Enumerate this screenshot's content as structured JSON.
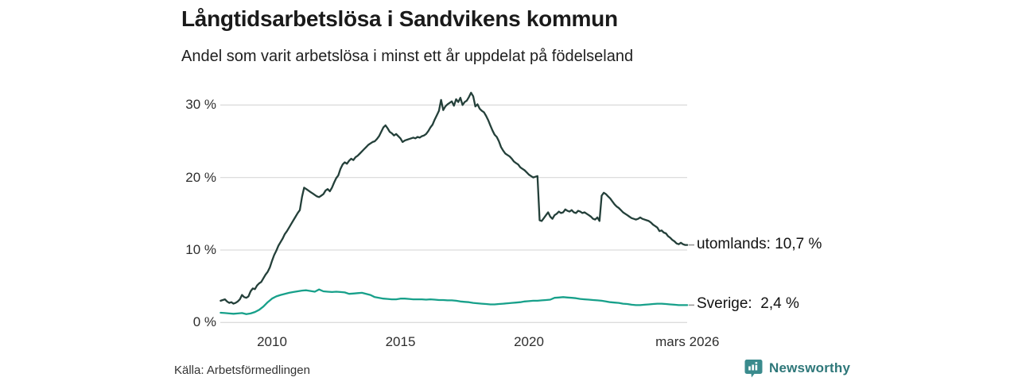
{
  "header": {
    "title": "Långtidsarbetslösa i Sandvikens kommun",
    "subtitle": "Andel som varit arbetslösa i minst ett år uppdelat på födelseland"
  },
  "source": {
    "label": "Källa: Arbetsförmedlingen"
  },
  "branding": {
    "name": "Newsworthy",
    "logo_icon": "bar-chart-badge-icon",
    "badge_color": "#3a8b8d",
    "text_color": "#2e7779"
  },
  "chart_data": {
    "type": "line",
    "title": "Långtidsarbetslösa i Sandvikens kommun",
    "subtitle": "Andel som varit arbetslösa i minst ett år uppdelat på födelseland",
    "unit": "%",
    "grid": true,
    "grid_color": "#dcdcdc",
    "y_axis": {
      "range": [
        0,
        32
      ],
      "ticks": [
        {
          "value": 30,
          "label": "30 %"
        },
        {
          "value": 20,
          "label": "20 %"
        },
        {
          "value": 10,
          "label": "10 %"
        },
        {
          "value": 0,
          "label": "0 %"
        }
      ]
    },
    "x_axis": {
      "range": [
        2008,
        2026.25
      ],
      "ticks": [
        {
          "year": 2010,
          "label": "2010"
        },
        {
          "year": 2015,
          "label": "2015"
        },
        {
          "year": 2020,
          "label": "2020"
        },
        {
          "year": 2026.17,
          "label": "mars 2026"
        }
      ]
    },
    "legend_position": "end-of-line",
    "dash_color": "#999999",
    "series": [
      {
        "name": "utomlands",
        "end_label": "utomlands: 10,7 %",
        "last_value_text": "10,7 %",
        "color": "#24403a",
        "x_start": 2008.0,
        "x_step_years": 0.083333,
        "values": [
          3.0,
          3.1,
          3.2,
          2.9,
          2.7,
          2.8,
          2.6,
          2.7,
          2.9,
          3.2,
          3.8,
          3.5,
          3.4,
          3.6,
          4.3,
          4.7,
          4.6,
          5.1,
          5.4,
          5.6,
          6.1,
          6.6,
          7.0,
          7.6,
          8.5,
          9.3,
          9.9,
          10.6,
          11.1,
          11.6,
          12.2,
          12.6,
          13.1,
          13.6,
          14.1,
          14.6,
          15.1,
          15.5,
          17.3,
          18.6,
          18.4,
          18.2,
          18.0,
          17.8,
          17.6,
          17.4,
          17.3,
          17.5,
          17.7,
          18.2,
          18.4,
          18.1,
          18.6,
          19.3,
          19.9,
          20.3,
          21.2,
          21.8,
          22.1,
          21.9,
          22.3,
          22.6,
          22.4,
          22.8,
          23.0,
          23.3,
          23.6,
          23.9,
          24.2,
          24.5,
          24.7,
          24.9,
          25.0,
          25.3,
          25.7,
          26.3,
          26.9,
          27.2,
          26.8,
          26.3,
          26.1,
          25.8,
          26.0,
          25.7,
          25.4,
          24.9,
          25.1,
          25.2,
          25.3,
          25.4,
          25.5,
          25.4,
          25.6,
          25.5,
          25.7,
          25.8,
          26.0,
          26.4,
          26.9,
          27.3,
          28.0,
          28.6,
          29.2,
          30.7,
          29.3,
          29.8,
          30.1,
          30.3,
          30.5,
          29.9,
          30.8,
          30.4,
          31.0,
          30.0,
          30.4,
          30.6,
          31.1,
          31.7,
          31.2,
          29.8,
          30.1,
          29.5,
          29.2,
          29.0,
          28.5,
          27.9,
          27.2,
          26.5,
          25.9,
          25.6,
          25.0,
          24.2,
          23.7,
          23.3,
          23.1,
          22.9,
          22.6,
          22.2,
          22.0,
          21.8,
          21.4,
          21.2,
          21.0,
          20.7,
          20.4,
          20.2,
          20.0,
          20.1,
          20.2,
          14.1,
          14.0,
          14.4,
          14.8,
          15.2,
          14.6,
          14.3,
          14.8,
          15.0,
          15.3,
          15.1,
          15.2,
          15.6,
          15.4,
          15.3,
          15.5,
          15.2,
          15.1,
          15.4,
          15.3,
          15.1,
          15.2,
          15.0,
          14.8,
          14.6,
          14.3,
          14.2,
          14.5,
          14.0,
          17.5,
          17.9,
          17.7,
          17.4,
          17.1,
          16.7,
          16.3,
          16.0,
          15.8,
          15.5,
          15.2,
          15.0,
          14.8,
          14.6,
          14.4,
          14.3,
          14.2,
          14.3,
          14.5,
          14.3,
          14.2,
          14.1,
          14.0,
          13.8,
          13.5,
          13.3,
          13.1,
          12.6,
          12.7,
          12.4,
          12.3,
          11.9,
          11.7,
          11.4,
          11.2,
          10.9,
          10.8,
          11.0,
          10.8,
          10.7,
          10.7
        ]
      },
      {
        "name": "Sverige",
        "end_label": "Sverige:  2,4 %",
        "last_value_text": "2,4 %",
        "color": "#17a08a",
        "x_start": 2008.0,
        "x_step_years": 0.166667,
        "values": [
          1.35,
          1.3,
          1.25,
          1.2,
          1.25,
          1.3,
          1.15,
          1.25,
          1.45,
          1.75,
          2.2,
          2.8,
          3.3,
          3.6,
          3.8,
          3.95,
          4.1,
          4.2,
          4.3,
          4.4,
          4.45,
          4.35,
          4.25,
          4.55,
          4.3,
          4.25,
          4.2,
          4.25,
          4.2,
          4.15,
          3.95,
          4.0,
          4.05,
          4.1,
          3.95,
          3.8,
          3.5,
          3.4,
          3.3,
          3.25,
          3.2,
          3.2,
          3.3,
          3.3,
          3.25,
          3.2,
          3.2,
          3.2,
          3.15,
          3.2,
          3.15,
          3.1,
          3.1,
          3.05,
          3.05,
          3.0,
          2.9,
          2.85,
          2.8,
          2.7,
          2.65,
          2.6,
          2.55,
          2.5,
          2.5,
          2.55,
          2.6,
          2.65,
          2.7,
          2.75,
          2.8,
          2.9,
          2.95,
          3.0,
          3.0,
          3.05,
          3.1,
          3.15,
          3.4,
          3.45,
          3.5,
          3.45,
          3.4,
          3.35,
          3.25,
          3.2,
          3.15,
          3.1,
          3.05,
          3.0,
          2.9,
          2.8,
          2.75,
          2.7,
          2.6,
          2.55,
          2.45,
          2.4,
          2.4,
          2.45,
          2.5,
          2.55,
          2.6,
          2.6,
          2.55,
          2.5,
          2.45,
          2.4,
          2.4,
          2.4
        ]
      }
    ]
  }
}
